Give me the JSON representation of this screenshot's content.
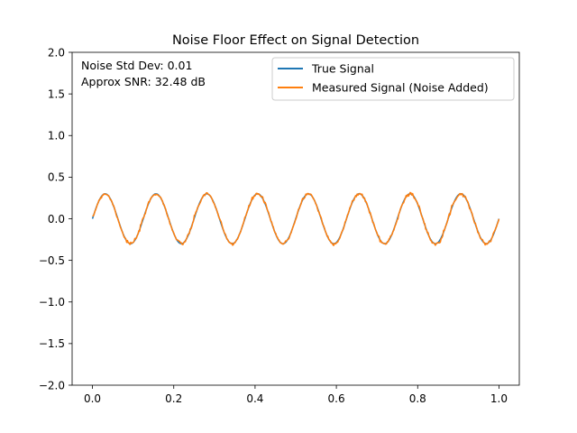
{
  "chart_data": {
    "type": "line",
    "title": "Noise Floor Effect on Signal Detection",
    "xlabel": "",
    "ylabel": "",
    "xlim": [
      -0.05,
      1.05
    ],
    "ylim": [
      -2.0,
      2.0
    ],
    "xticks": [
      0.0,
      0.2,
      0.4,
      0.6,
      0.8,
      1.0
    ],
    "xtick_labels": [
      "0.0",
      "0.2",
      "0.4",
      "0.6",
      "0.8",
      "1.0"
    ],
    "yticks": [
      -2.0,
      -1.5,
      -1.0,
      -0.5,
      0.0,
      0.5,
      1.0,
      1.5,
      2.0
    ],
    "ytick_labels": [
      "−2.0",
      "−1.5",
      "−1.0",
      "−0.5",
      "0.0",
      "0.5",
      "1.0",
      "1.5",
      "2.0"
    ],
    "grid": false,
    "legend_position": "top-right",
    "annotations": [
      "Noise Std Dev: 0.01",
      "Approx SNR: 32.48 dB"
    ],
    "signal": {
      "amplitude": 0.3,
      "frequency": 8,
      "x_start": 0.0,
      "x_end": 1.0,
      "samples": 500
    },
    "series": [
      {
        "name": "True Signal",
        "color": "#1f77b4",
        "noise_std": 0.0
      },
      {
        "name": "Measured Signal (Noise Added)",
        "color": "#ff7f0e",
        "noise_std": 0.01
      }
    ]
  }
}
